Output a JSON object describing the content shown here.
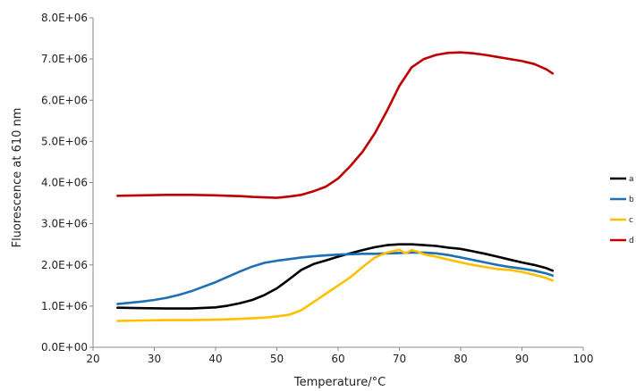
{
  "chart_data": {
    "type": "line",
    "xlabel": "Temperature/°C",
    "ylabel": "Fluorescence at 610 nm",
    "xlim": [
      20,
      100
    ],
    "ylim": [
      0,
      8000000
    ],
    "x_ticks": [
      20,
      30,
      40,
      50,
      60,
      70,
      80,
      90,
      100
    ],
    "y_ticks": [
      {
        "value": 0,
        "label": "0.0E+00"
      },
      {
        "value": 1000000,
        "label": "1.0E+06"
      },
      {
        "value": 2000000,
        "label": "2.0E+06"
      },
      {
        "value": 3000000,
        "label": "3.0E+06"
      },
      {
        "value": 4000000,
        "label": "4.0E+06"
      },
      {
        "value": 5000000,
        "label": "5.0E+06"
      },
      {
        "value": 6000000,
        "label": "6.0E+06"
      },
      {
        "value": 7000000,
        "label": "7.0E+06"
      },
      {
        "value": 8000000,
        "label": "8.0E+06"
      }
    ],
    "grid": false,
    "legend_position": "right",
    "series": [
      {
        "name": "a",
        "color": "#000000",
        "x": [
          24,
          28,
          32,
          36,
          40,
          42,
          44,
          46,
          48,
          50,
          52,
          54,
          56,
          58,
          60,
          62,
          64,
          66,
          68,
          70,
          72,
          74,
          76,
          78,
          80,
          82,
          84,
          86,
          88,
          90,
          92,
          94,
          95
        ],
        "y": [
          960000,
          950000,
          940000,
          940000,
          970000,
          1010000,
          1070000,
          1150000,
          1270000,
          1430000,
          1650000,
          1880000,
          2020000,
          2110000,
          2200000,
          2280000,
          2360000,
          2430000,
          2480000,
          2500000,
          2500000,
          2480000,
          2460000,
          2420000,
          2390000,
          2330000,
          2270000,
          2200000,
          2130000,
          2060000,
          2000000,
          1920000,
          1860000
        ]
      },
      {
        "name": "b",
        "color": "#1f6fb5",
        "x": [
          24,
          26,
          28,
          30,
          32,
          34,
          36,
          38,
          40,
          42,
          44,
          46,
          48,
          50,
          52,
          54,
          56,
          58,
          60,
          62,
          64,
          66,
          68,
          70,
          72,
          74,
          76,
          78,
          80,
          82,
          84,
          86,
          88,
          90,
          92,
          94,
          95
        ],
        "y": [
          1050000,
          1080000,
          1110000,
          1150000,
          1200000,
          1270000,
          1360000,
          1470000,
          1580000,
          1710000,
          1840000,
          1960000,
          2050000,
          2100000,
          2140000,
          2180000,
          2210000,
          2230000,
          2250000,
          2260000,
          2270000,
          2270000,
          2280000,
          2290000,
          2300000,
          2300000,
          2280000,
          2240000,
          2180000,
          2120000,
          2060000,
          2000000,
          1950000,
          1910000,
          1860000,
          1790000,
          1740000
        ]
      },
      {
        "name": "c",
        "color": "#ffc000",
        "x": [
          24,
          28,
          32,
          36,
          40,
          44,
          48,
          50,
          52,
          54,
          56,
          58,
          60,
          62,
          64,
          66,
          68,
          70,
          71,
          72,
          73,
          74,
          76,
          78,
          80,
          82,
          84,
          86,
          88,
          90,
          92,
          94,
          95
        ],
        "y": [
          640000,
          650000,
          660000,
          660000,
          670000,
          690000,
          720000,
          750000,
          790000,
          900000,
          1100000,
          1300000,
          1500000,
          1700000,
          1950000,
          2180000,
          2300000,
          2370000,
          2280000,
          2360000,
          2320000,
          2260000,
          2200000,
          2130000,
          2060000,
          2000000,
          1950000,
          1900000,
          1880000,
          1830000,
          1760000,
          1680000,
          1620000
        ]
      },
      {
        "name": "d",
        "color": "#c00000",
        "x": [
          24,
          28,
          32,
          36,
          40,
          42,
          44,
          46,
          48,
          50,
          52,
          54,
          56,
          58,
          60,
          62,
          64,
          66,
          68,
          70,
          72,
          74,
          76,
          78,
          80,
          82,
          84,
          86,
          88,
          90,
          92,
          94,
          95
        ],
        "y": [
          3680000,
          3690000,
          3700000,
          3700000,
          3690000,
          3680000,
          3670000,
          3650000,
          3640000,
          3630000,
          3660000,
          3700000,
          3790000,
          3900000,
          4100000,
          4400000,
          4750000,
          5200000,
          5750000,
          6350000,
          6800000,
          7000000,
          7100000,
          7150000,
          7160000,
          7140000,
          7100000,
          7050000,
          7000000,
          6950000,
          6880000,
          6750000,
          6650000
        ]
      }
    ]
  }
}
